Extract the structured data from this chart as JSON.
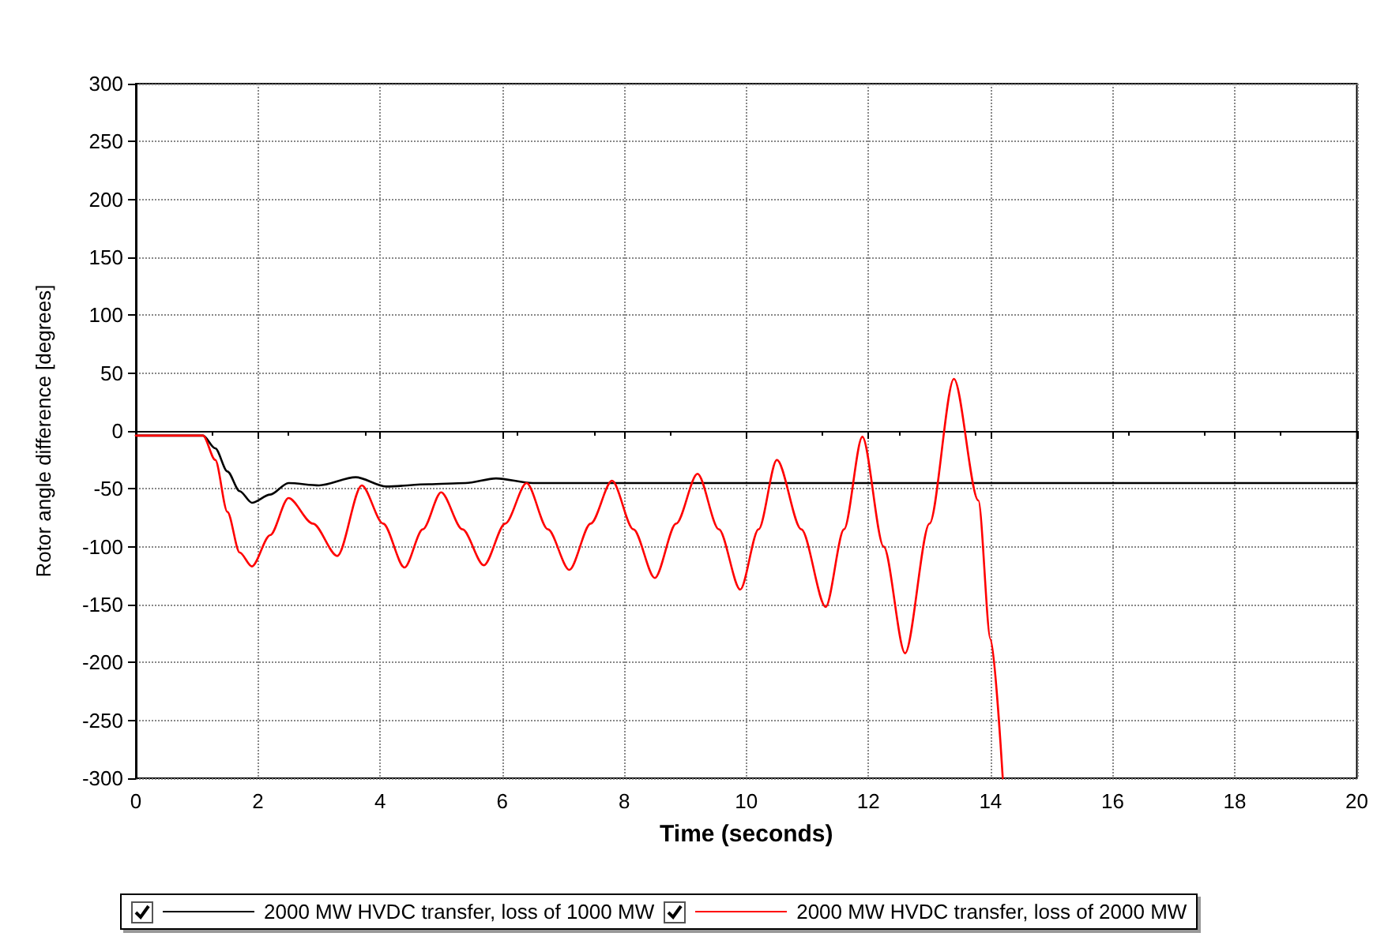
{
  "chart_data": {
    "type": "line",
    "xlabel": "Time (seconds)",
    "ylabel": "Rotor angle difference [degrees]",
    "xlim": [
      0,
      20
    ],
    "xticks": [
      0,
      2,
      4,
      6,
      8,
      10,
      12,
      14,
      16,
      18,
      20
    ],
    "ylim": [
      -300,
      300
    ],
    "yticks": [
      -300,
      -250,
      -200,
      -150,
      -100,
      -50,
      0,
      50,
      100,
      150,
      200,
      250,
      300
    ],
    "grid": true,
    "legend": "bottom",
    "marker": "none",
    "line_style": "solid",
    "series": [
      {
        "name": "2000 MW HVDC transfer, loss of 1000 MW",
        "color": "#000000",
        "x": [
          0,
          1.1,
          1.3,
          1.5,
          1.7,
          1.9,
          2.2,
          2.5,
          3.0,
          3.6,
          4.1,
          4.8,
          5.4,
          5.9,
          6.5,
          8,
          10,
          12,
          14,
          16,
          18,
          20
        ],
        "values": [
          -4,
          -4,
          -15,
          -35,
          -52,
          -62,
          -55,
          -45,
          -47,
          -40,
          -48,
          -46,
          -45,
          -41,
          -45,
          -45,
          -45,
          -45,
          -45,
          -45,
          -45,
          -45
        ]
      },
      {
        "name": "2000 MW HVDC transfer, loss of 2000 MW",
        "color": "#ff0000",
        "x": [
          0,
          1.1,
          1.3,
          1.5,
          1.7,
          1.9,
          2.2,
          2.5,
          2.9,
          3.3,
          3.7,
          4.05,
          4.4,
          4.7,
          5.0,
          5.35,
          5.7,
          6.05,
          6.4,
          6.75,
          7.1,
          7.45,
          7.8,
          8.15,
          8.5,
          8.85,
          9.2,
          9.55,
          9.9,
          10.2,
          10.5,
          10.9,
          11.3,
          11.6,
          11.9,
          12.25,
          12.6,
          13.0,
          13.4,
          13.8,
          14.0,
          14.2
        ],
        "values": [
          -4,
          -4,
          -25,
          -70,
          -105,
          -117,
          -90,
          -58,
          -80,
          -108,
          -47,
          -80,
          -118,
          -85,
          -53,
          -85,
          -116,
          -80,
          -45,
          -85,
          -120,
          -80,
          -43,
          -85,
          -127,
          -80,
          -37,
          -85,
          -137,
          -85,
          -25,
          -85,
          -152,
          -85,
          -5,
          -100,
          -192,
          -80,
          45,
          -60,
          -180,
          -300
        ]
      }
    ]
  }
}
